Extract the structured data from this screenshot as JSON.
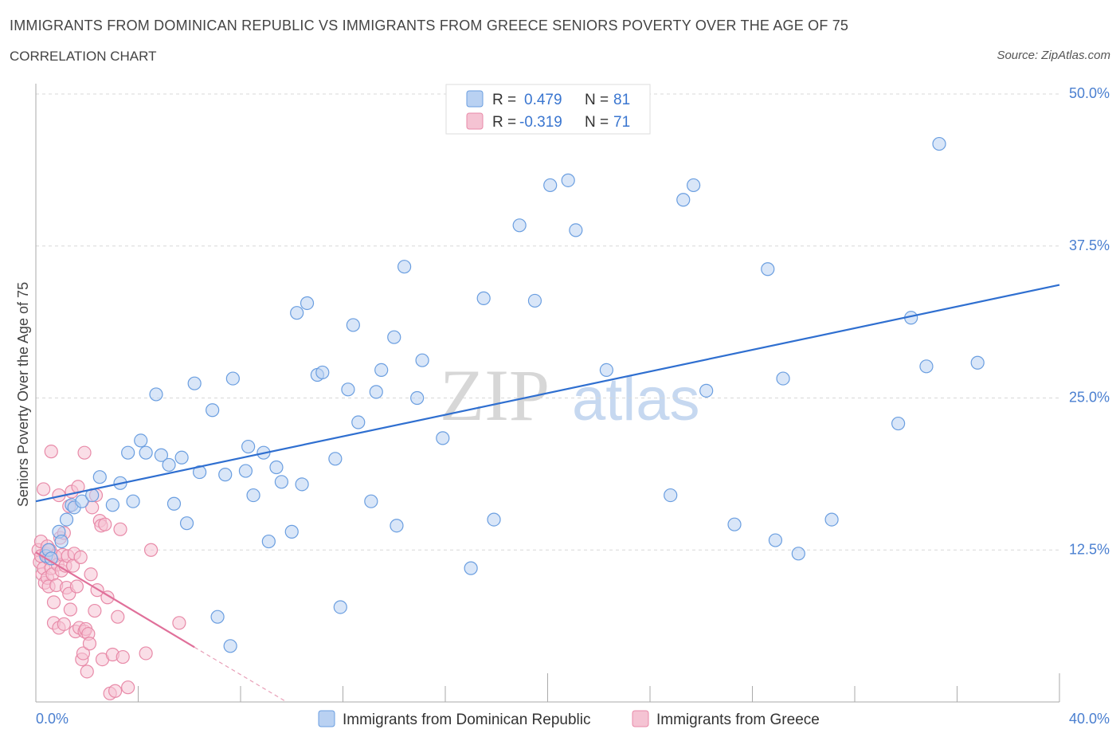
{
  "title": "IMMIGRANTS FROM DOMINICAN REPUBLIC VS IMMIGRANTS FROM GREECE SENIORS POVERTY OVER THE AGE OF 75",
  "subtitle": "CORRELATION CHART",
  "source": "Source: ZipAtlas.com",
  "watermark": {
    "part1": "ZIP",
    "part2": "atlas"
  },
  "chart_data": {
    "type": "scatter",
    "ylabel": "Seniors Poverty Over the Age of 75",
    "x_tick_labels": {
      "min": "0.0%",
      "max": "40.0%"
    },
    "y_tick_labels": [
      "12.5%",
      "25.0%",
      "37.5%",
      "50.0%"
    ],
    "xlim": [
      0,
      40
    ],
    "ylim": [
      0,
      50
    ],
    "y_ticks": [
      12.5,
      25,
      37.5,
      50
    ],
    "legend": [
      {
        "name": "Immigrants from Dominican Republic",
        "r_label": "R =",
        "r_value": "0.479",
        "n_label": "N =",
        "n_value": "81"
      },
      {
        "name": "Immigrants from Greece",
        "r_label": "R =",
        "r_value": "-0.319",
        "n_label": "N =",
        "n_value": "71"
      }
    ],
    "series": [
      {
        "name": "Immigrants from Dominican Republic",
        "color": "#6a9ee0",
        "fill": "#b9d1f2",
        "trendline": {
          "x": [
            0,
            40
          ],
          "y": [
            16.5,
            34.3
          ]
        },
        "points": [
          [
            0.4,
            12.0
          ],
          [
            0.5,
            12.5
          ],
          [
            0.6,
            11.8
          ],
          [
            0.9,
            14.0
          ],
          [
            1.0,
            13.2
          ],
          [
            1.2,
            15.0
          ],
          [
            1.4,
            16.2
          ],
          [
            1.5,
            16.0
          ],
          [
            1.8,
            16.5
          ],
          [
            2.2,
            17.0
          ],
          [
            2.5,
            18.5
          ],
          [
            3.0,
            16.2
          ],
          [
            3.3,
            18.0
          ],
          [
            3.6,
            20.5
          ],
          [
            3.8,
            16.5
          ],
          [
            4.1,
            21.5
          ],
          [
            4.3,
            20.5
          ],
          [
            4.7,
            25.3
          ],
          [
            4.9,
            20.3
          ],
          [
            5.2,
            19.5
          ],
          [
            5.4,
            16.3
          ],
          [
            5.7,
            20.1
          ],
          [
            5.9,
            14.7
          ],
          [
            6.2,
            26.2
          ],
          [
            6.4,
            18.9
          ],
          [
            6.9,
            24.0
          ],
          [
            7.1,
            7.0
          ],
          [
            7.4,
            18.7
          ],
          [
            7.6,
            4.6
          ],
          [
            7.7,
            26.6
          ],
          [
            8.2,
            19.0
          ],
          [
            8.3,
            21.0
          ],
          [
            8.5,
            17.0
          ],
          [
            8.9,
            20.5
          ],
          [
            9.1,
            13.2
          ],
          [
            9.4,
            19.3
          ],
          [
            9.6,
            18.1
          ],
          [
            10.0,
            14.0
          ],
          [
            10.2,
            32.0
          ],
          [
            10.4,
            17.9
          ],
          [
            10.6,
            32.8
          ],
          [
            11.0,
            26.9
          ],
          [
            11.2,
            27.1
          ],
          [
            11.7,
            20.0
          ],
          [
            11.9,
            7.8
          ],
          [
            12.2,
            25.7
          ],
          [
            12.4,
            31.0
          ],
          [
            12.6,
            23.0
          ],
          [
            13.1,
            16.5
          ],
          [
            13.3,
            25.5
          ],
          [
            13.5,
            27.3
          ],
          [
            14.0,
            30.0
          ],
          [
            14.1,
            14.5
          ],
          [
            14.4,
            35.8
          ],
          [
            14.9,
            25.0
          ],
          [
            15.1,
            28.1
          ],
          [
            15.9,
            21.7
          ],
          [
            17.0,
            11.0
          ],
          [
            17.5,
            33.2
          ],
          [
            17.9,
            15.0
          ],
          [
            18.9,
            39.2
          ],
          [
            19.5,
            33.0
          ],
          [
            20.1,
            42.5
          ],
          [
            20.8,
            42.9
          ],
          [
            21.1,
            38.8
          ],
          [
            22.3,
            27.3
          ],
          [
            24.8,
            17.0
          ],
          [
            25.3,
            41.3
          ],
          [
            25.7,
            42.5
          ],
          [
            26.2,
            25.6
          ],
          [
            27.3,
            14.6
          ],
          [
            28.6,
            35.6
          ],
          [
            28.9,
            13.3
          ],
          [
            29.2,
            26.6
          ],
          [
            29.8,
            12.2
          ],
          [
            31.1,
            15.0
          ],
          [
            33.7,
            22.9
          ],
          [
            34.2,
            31.6
          ],
          [
            34.8,
            27.6
          ],
          [
            35.3,
            45.9
          ],
          [
            36.8,
            27.9
          ]
        ]
      },
      {
        "name": "Immigrants from Greece",
        "color": "#e88aa8",
        "fill": "#f5c3d3",
        "trendline": {
          "x": [
            0,
            6.2
          ],
          "y": [
            12.3,
            4.5
          ]
        },
        "trendline_dashed": {
          "x": [
            6.2,
            9.8
          ],
          "y": [
            4.5,
            0
          ]
        },
        "points": [
          [
            0.1,
            12.5
          ],
          [
            0.15,
            11.5
          ],
          [
            0.2,
            12.0
          ],
          [
            0.25,
            10.5
          ],
          [
            0.3,
            17.5
          ],
          [
            0.3,
            11.0
          ],
          [
            0.35,
            9.8
          ],
          [
            0.4,
            12.2
          ],
          [
            0.45,
            10.2
          ],
          [
            0.5,
            11.8
          ],
          [
            0.5,
            9.5
          ],
          [
            0.55,
            12.5
          ],
          [
            0.6,
            11.0
          ],
          [
            0.65,
            10.5
          ],
          [
            0.7,
            8.2
          ],
          [
            0.7,
            6.5
          ],
          [
            0.75,
            12.0
          ],
          [
            0.8,
            9.6
          ],
          [
            0.85,
            11.3
          ],
          [
            0.9,
            6.1
          ],
          [
            0.9,
            17.0
          ],
          [
            0.95,
            13.5
          ],
          [
            1.0,
            10.8
          ],
          [
            1.05,
            12.1
          ],
          [
            1.1,
            6.4
          ],
          [
            1.1,
            13.9
          ],
          [
            1.15,
            11.2
          ],
          [
            1.2,
            9.4
          ],
          [
            1.25,
            12.0
          ],
          [
            1.3,
            8.9
          ],
          [
            1.3,
            16.1
          ],
          [
            1.35,
            7.6
          ],
          [
            1.4,
            17.3
          ],
          [
            1.45,
            11.2
          ],
          [
            1.5,
            12.2
          ],
          [
            1.55,
            5.8
          ],
          [
            1.6,
            9.5
          ],
          [
            1.65,
            17.7
          ],
          [
            1.7,
            6.1
          ],
          [
            1.75,
            11.9
          ],
          [
            1.8,
            3.5
          ],
          [
            1.85,
            4.0
          ],
          [
            1.9,
            5.8
          ],
          [
            1.95,
            6.0
          ],
          [
            2.0,
            2.5
          ],
          [
            2.05,
            5.6
          ],
          [
            2.1,
            4.8
          ],
          [
            2.15,
            10.5
          ],
          [
            2.2,
            16.0
          ],
          [
            2.3,
            7.5
          ],
          [
            2.35,
            17.0
          ],
          [
            2.4,
            9.2
          ],
          [
            2.5,
            14.9
          ],
          [
            2.55,
            14.5
          ],
          [
            2.6,
            3.5
          ],
          [
            2.7,
            14.6
          ],
          [
            2.8,
            8.6
          ],
          [
            2.9,
            0.7
          ],
          [
            3.0,
            3.9
          ],
          [
            3.1,
            0.9
          ],
          [
            3.2,
            7.0
          ],
          [
            3.3,
            14.2
          ],
          [
            3.4,
            3.7
          ],
          [
            3.6,
            1.2
          ],
          [
            4.3,
            4.0
          ],
          [
            4.5,
            12.5
          ],
          [
            5.6,
            6.5
          ],
          [
            0.6,
            20.6
          ],
          [
            1.9,
            20.5
          ],
          [
            0.2,
            13.2
          ],
          [
            0.45,
            12.8
          ]
        ]
      }
    ]
  }
}
